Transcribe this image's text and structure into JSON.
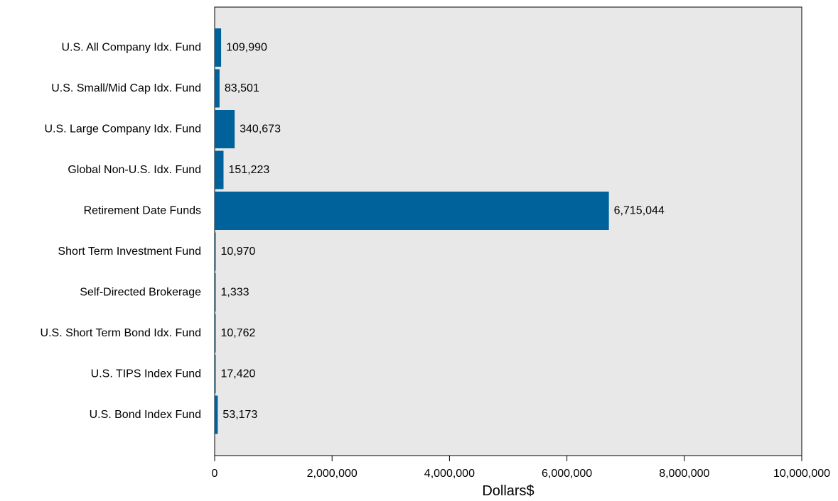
{
  "chart_data": {
    "type": "bar",
    "orientation": "horizontal",
    "categories": [
      "U.S. All Company Idx. Fund",
      "U.S. Small/Mid Cap Idx. Fund",
      "U.S. Large Company Idx. Fund",
      "Global Non-U.S. Idx. Fund",
      "Retirement Date Funds",
      "Short Term Investment Fund",
      "Self-Directed Brokerage",
      "U.S. Short Term Bond Idx. Fund",
      "U.S. TIPS Index Fund",
      "U.S. Bond Index Fund"
    ],
    "values": [
      109990,
      83501,
      340673,
      151223,
      6715044,
      10970,
      1333,
      10762,
      17420,
      53173
    ],
    "data_labels": [
      "109,990",
      "83,501",
      "340,673",
      "151,223",
      "6,715,044",
      "10,970",
      "1,333",
      "10,762",
      "17,420",
      "53,173"
    ],
    "xlabel": "Dollars$",
    "ylabel": "",
    "title": "",
    "xlim": [
      0,
      10000000
    ],
    "x_ticks": [
      0,
      2000000,
      4000000,
      6000000,
      8000000,
      10000000
    ],
    "x_tick_labels": [
      "0",
      "2,000,000",
      "4,000,000",
      "6,000,000",
      "8,000,000",
      "10,000,000"
    ],
    "grid": false,
    "legend": "none",
    "colors": {
      "bar": "#00629b",
      "plot_background": "#e8e8e8",
      "axis": "#000000"
    }
  }
}
